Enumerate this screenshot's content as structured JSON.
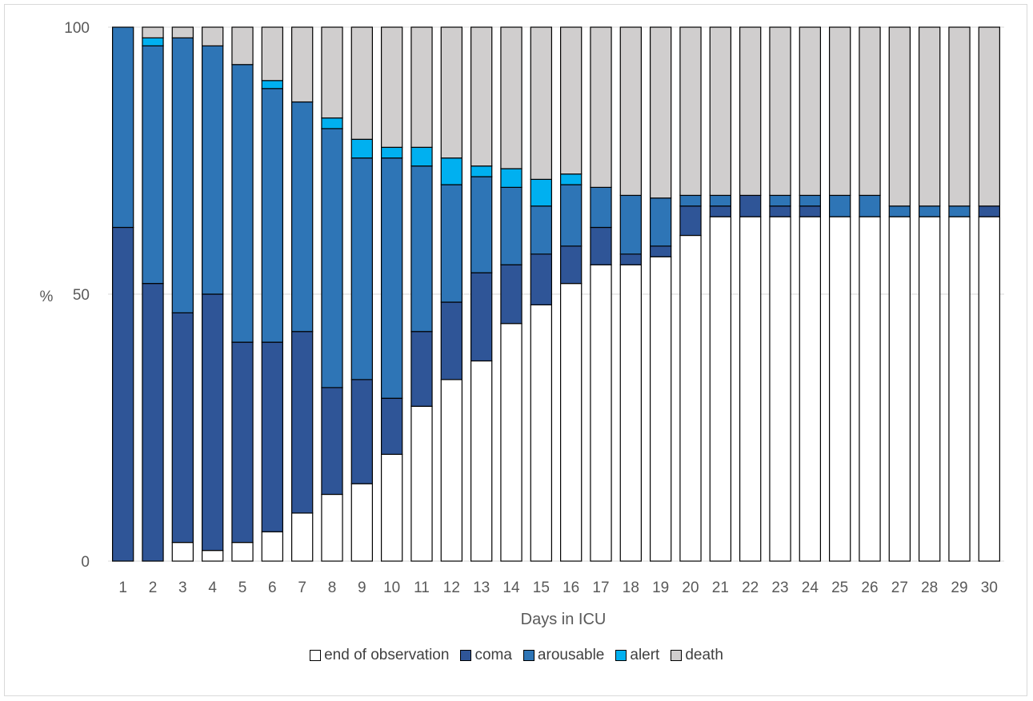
{
  "chart_data": {
    "type": "bar",
    "stacked": true,
    "xlabel": "Days in ICU",
    "ylabel": "%",
    "ylim": [
      0,
      100
    ],
    "yticks": [
      "0",
      "50",
      "100"
    ],
    "categories": [
      "1",
      "2",
      "3",
      "4",
      "5",
      "6",
      "7",
      "8",
      "9",
      "10",
      "11",
      "12",
      "13",
      "14",
      "15",
      "16",
      "17",
      "18",
      "19",
      "20",
      "21",
      "22",
      "23",
      "24",
      "25",
      "26",
      "27",
      "28",
      "29",
      "30"
    ],
    "legend_position": "bottom",
    "grid": "horizontal",
    "series": [
      {
        "name": "end of observation",
        "color": "#ffffff",
        "values": [
          0,
          0,
          3.5,
          2,
          3.5,
          5.5,
          9,
          12.5,
          14.5,
          20,
          29,
          34,
          37.5,
          44.5,
          48,
          52,
          55.5,
          55.5,
          57,
          61,
          64.5,
          64.5,
          64.5,
          64.5,
          64.5,
          64.5,
          64.5,
          64.5,
          64.5,
          64.5
        ]
      },
      {
        "name": "coma",
        "color": "#2f5597",
        "values": [
          62.5,
          52,
          43,
          48,
          37.5,
          35.5,
          34,
          20,
          19.5,
          10.5,
          14,
          14.5,
          16.5,
          11,
          9.5,
          7,
          7,
          2,
          2,
          5.5,
          2,
          4,
          2,
          2,
          0,
          0,
          0,
          0,
          0,
          2
        ]
      },
      {
        "name": "arousable",
        "color": "#2e75b6",
        "values": [
          37.5,
          44.5,
          51.5,
          46.5,
          52,
          47.5,
          43,
          48.5,
          41.5,
          45,
          31,
          22,
          18,
          14.5,
          9,
          11.5,
          7.5,
          11,
          9,
          2,
          2,
          0,
          2,
          2,
          4,
          4,
          2,
          2,
          2,
          0
        ]
      },
      {
        "name": "alert",
        "color": "#00b0f0",
        "values": [
          0,
          1.5,
          0,
          0,
          0,
          1.5,
          0,
          2,
          3.5,
          2,
          3.5,
          5,
          2,
          3.5,
          5,
          2,
          0,
          0,
          0,
          0,
          0,
          0,
          0,
          0,
          0,
          0,
          0,
          0,
          0,
          0
        ]
      },
      {
        "name": "death",
        "color": "#d0cece",
        "values": [
          0,
          2,
          2,
          3.5,
          7,
          10,
          14,
          17,
          21,
          22.5,
          22.5,
          24.5,
          26,
          26.5,
          28.5,
          27.5,
          30,
          31.5,
          32,
          31.5,
          31.5,
          31.5,
          31.5,
          31.5,
          31.5,
          31.5,
          33.5,
          33.5,
          33.5,
          33.5
        ]
      }
    ]
  }
}
